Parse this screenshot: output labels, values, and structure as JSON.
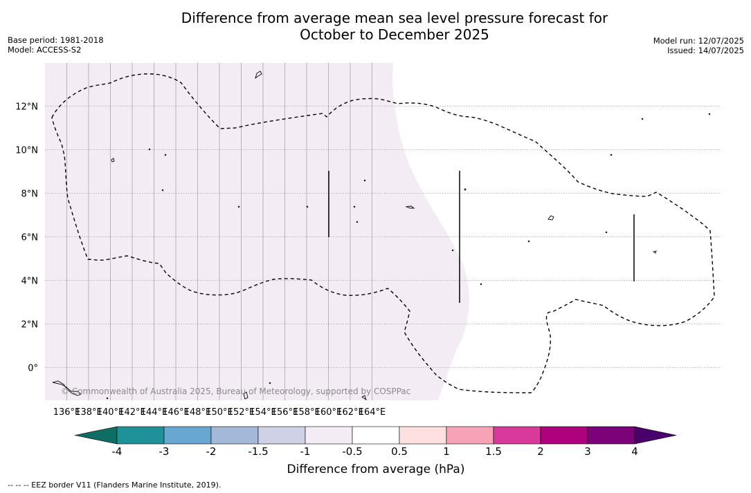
{
  "title": {
    "line1": "Difference from average mean sea level pressure forecast for",
    "line2": "October to December 2025"
  },
  "meta": {
    "base_period": "Base period: 1981-2018",
    "model": "Model: ACCESS-S2",
    "model_run": "Model run: 12/07/2025",
    "issued": "Issued: 14/07/2025"
  },
  "map": {
    "lon_labels": [
      "136°E",
      "138°E",
      "140°E",
      "142°E",
      "144°E",
      "146°E",
      "148°E",
      "150°E",
      "152°E",
      "154°E",
      "156°E",
      "158°E",
      "160°E",
      "162°E",
      "164°E"
    ],
    "lat_labels": [
      "12°N",
      "10°N",
      "8°N",
      "6°N",
      "4°N",
      "2°N",
      "0°"
    ],
    "copyright": "© Commonwealth of Australia 2025, Bureau of Meteorology, supported by COSPPac",
    "shaded_category": "-1 to -0.5 hPa",
    "shaded_color": "#f4ecf5"
  },
  "colorbar": {
    "title": "Difference from average (hPa)",
    "tick_labels": [
      "-4",
      "-3",
      "-2",
      "-1.5",
      "-1",
      "-0.5",
      "0.5",
      "1",
      "1.5",
      "2",
      "3",
      "4"
    ],
    "colors": [
      "#0e6e63",
      "#1f9199",
      "#68a8d0",
      "#a4b8da",
      "#cfd2e7",
      "#f4ecf5",
      "#ffffff",
      "#fde0df",
      "#f7a3b7",
      "#d8399b",
      "#ad017e",
      "#7a0177",
      "#4a006a"
    ]
  },
  "footnote": "-- -- -- EEZ border V11 (Flanders Marine Institute, 2019)."
}
